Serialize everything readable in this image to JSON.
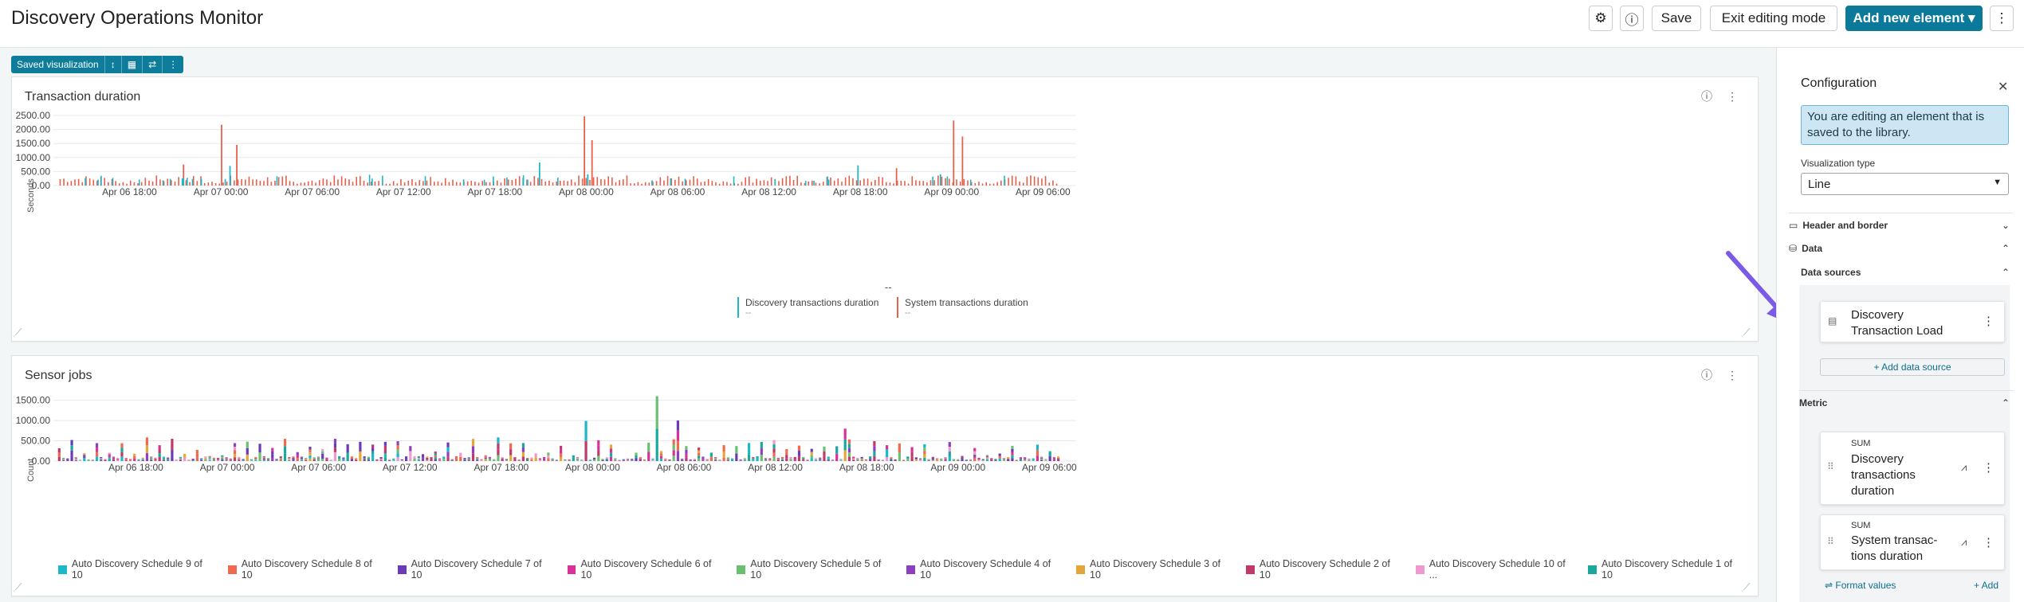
{
  "header": {
    "title": "Discovery Operations Monitor",
    "save_label": "Save",
    "exit_label": "Exit editing mode",
    "add_label": "Add new element ▾"
  },
  "toolbar": {
    "saved_label": "Saved visualization"
  },
  "chart1": {
    "title": "Transaction duration",
    "ylabel": "Seconds",
    "subtitle": "--",
    "legend": [
      {
        "name": "Discovery transactions duration",
        "value": "--",
        "color": "#1fb6c8"
      },
      {
        "name": "System transactions duration",
        "value": "--",
        "color": "#e8604c"
      }
    ]
  },
  "chart2": {
    "title": "Sensor jobs",
    "ylabel": "Count",
    "legend": [
      {
        "name": "Auto Discovery Schedule 9 of 10",
        "color": "#1bb8c9"
      },
      {
        "name": "Auto Discovery Schedule 8 of 10",
        "color": "#ef6a4e"
      },
      {
        "name": "Auto Discovery Schedule 7 of 10",
        "color": "#6a3ab8"
      },
      {
        "name": "Auto Discovery Schedule 6 of 10",
        "color": "#d8329a"
      },
      {
        "name": "Auto Discovery Schedule 5 of 10",
        "color": "#6bbf73"
      },
      {
        "name": "Auto Discovery Schedule 4 of 10",
        "color": "#8e3fbf"
      },
      {
        "name": "Auto Discovery Schedule 3 of 10",
        "color": "#e4a63a"
      },
      {
        "name": "Auto Discovery Schedule 2 of 10",
        "color": "#c2386a"
      },
      {
        "name": "Auto Discovery Schedule 10 of ...",
        "color": "#ee9ad0"
      },
      {
        "name": "Auto Discovery Schedule 1 of 10",
        "color": "#18a99a"
      }
    ]
  },
  "chart_data": [
    {
      "type": "bar",
      "title": "Transaction duration",
      "ylabel": "Seconds",
      "yticks": [
        "0.00",
        "500.00",
        "1000.00",
        "1500.00",
        "2000.00",
        "2500.00"
      ],
      "ylim": [
        0,
        2500
      ],
      "xticks": [
        "Apr 06 18:00",
        "Apr 07 00:00",
        "Apr 07 06:00",
        "Apr 07 12:00",
        "Apr 07 18:00",
        "Apr 08 00:00",
        "Apr 08 06:00",
        "Apr 08 12:00",
        "Apr 08 18:00",
        "Apr 09 00:00",
        "Apr 09 06:00"
      ],
      "series": [
        {
          "name": "Discovery transactions duration",
          "peaks": [
            {
              "x": "Apr 07 00:30",
              "y": 700
            },
            {
              "x": "Apr 07 20:50",
              "y": 820
            },
            {
              "x": "Apr 08 00:00",
              "y": 400
            },
            {
              "x": "Apr 08 17:45",
              "y": 720
            },
            {
              "x": "Apr 08 23:10",
              "y": 400
            }
          ]
        },
        {
          "name": "System transactions duration",
          "peaks": [
            {
              "x": "Apr 07 00:00",
              "y": 2170
            },
            {
              "x": "Apr 07 01:00",
              "y": 1450
            },
            {
              "x": "Apr 07 23:50",
              "y": 2470
            },
            {
              "x": "Apr 08 00:20",
              "y": 1620
            },
            {
              "x": "Apr 09 00:05",
              "y": 2320
            },
            {
              "x": "Apr 09 00:40",
              "y": 1750
            },
            {
              "x": "Apr 06 21:30",
              "y": 750
            },
            {
              "x": "Apr 08 20:20",
              "y": 620
            }
          ]
        }
      ],
      "baseline_range": [
        100,
        450
      ]
    },
    {
      "type": "bar",
      "stacked": true,
      "title": "Sensor jobs",
      "ylabel": "Count",
      "yticks": [
        "0.00",
        "500.00",
        "1000.00",
        "1500.00"
      ],
      "ylim": [
        0,
        1650
      ],
      "xticks": [
        "Apr 06 18:00",
        "Apr 07 00:00",
        "Apr 07 06:00",
        "Apr 07 12:00",
        "Apr 07 18:00",
        "Apr 08 00:00",
        "Apr 08 06:00",
        "Apr 08 12:00",
        "Apr 08 18:00",
        "Apr 09 00:00",
        "Apr 09 06:00"
      ],
      "peaks": [
        {
          "x": "Apr 08 04:30",
          "y": 1600
        },
        {
          "x": "Apr 08 06:00",
          "y": 1000
        },
        {
          "x": "Apr 07 23:50",
          "y": 990
        },
        {
          "x": "Apr 08 17:00",
          "y": 800
        }
      ]
    }
  ],
  "sidebar": {
    "title": "Configuration",
    "notice": "You are editing an element that is saved to the library.",
    "vis_type_label": "Visualization type",
    "vis_type_value": "Line",
    "sections": {
      "header_border": "Header and border",
      "data": "Data",
      "data_sources": "Data sources",
      "metric": "Metric"
    },
    "data_source": "Discovery Transaction Load",
    "add_data_source": "+ Add data source",
    "metrics": [
      {
        "agg": "SUM",
        "name": "Discovery transactions duration"
      },
      {
        "agg": "SUM",
        "name": "System transac-tions duration"
      }
    ],
    "format_values": "Format values",
    "add": "+ Add"
  }
}
